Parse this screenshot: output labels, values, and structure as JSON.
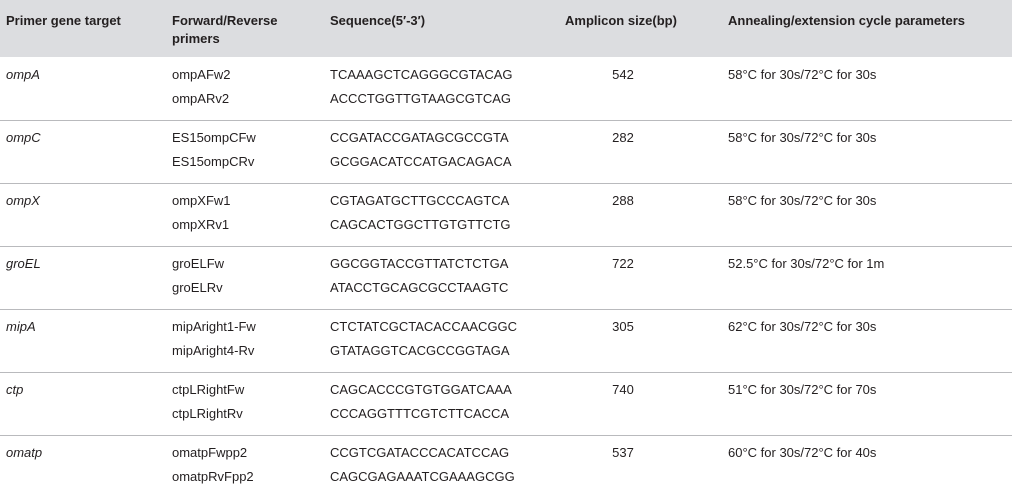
{
  "headers": {
    "target": "Primer gene target",
    "primers_line1": "Forward/Reverse",
    "primers_line2": "primers",
    "sequence": "Sequence(5′-3′)",
    "amplicon": "Amplicon size(bp)",
    "cycle": "Annealing/extension cycle parameters"
  },
  "rows": [
    {
      "target": "ompA",
      "fwd": "ompAFw2",
      "rev": "ompARv2",
      "fwd_seq": "TCAAAGCTCAGGGCGTACAG",
      "rev_seq": "ACCCTGGTTGTAAGCGTCAG",
      "size": "542",
      "cycle": "58°C for 30s/72°C for 30s"
    },
    {
      "target": "ompC",
      "fwd": "ES15ompCFw",
      "rev": "ES15ompCRv",
      "fwd_seq": "CCGATACCGATAGCGCCGTA",
      "rev_seq": "GCGGACATCCATGACAGACA",
      "size": "282",
      "cycle": "58°C for 30s/72°C for 30s"
    },
    {
      "target": "ompX",
      "fwd": "ompXFw1",
      "rev": "ompXRv1",
      "fwd_seq": "CGTAGATGCTTGCCCAGTCA",
      "rev_seq": "CAGCACTGGCTTGTGTTCTG",
      "size": "288",
      "cycle": "58°C for 30s/72°C for 30s"
    },
    {
      "target": "groEL",
      "fwd": "groELFw",
      "rev": "groELRv",
      "fwd_seq": "GGCGGTACCGTTATCTCTGA",
      "rev_seq": "ATACCTGCAGCGCCTAAGTC",
      "size": "722",
      "cycle": "52.5°C for 30s/72°C for 1m"
    },
    {
      "target": "mipA",
      "fwd": "mipAright1-Fw",
      "rev": "mipAright4-Rv",
      "fwd_seq": "CTCTATCGCTACACCAACGGC",
      "rev_seq": "GTATAGGTCACGCCGGTAGA",
      "size": "305",
      "cycle": "62°C for 30s/72°C for 30s"
    },
    {
      "target": "ctp",
      "fwd": "ctpLRightFw",
      "rev": "ctpLRightRv",
      "fwd_seq": "CAGCACCCGTGTGGATCAAA",
      "rev_seq": "CCCAGGTTTCGTCTTCACCA",
      "size": "740",
      "cycle": "51°C for 30s/72°C for 70s"
    },
    {
      "target": "omatp",
      "fwd": "omatpFwpp2",
      "rev": "omatpRvFpp2",
      "fwd_seq": "CCGTCGATACCCACATCCAG",
      "rev_seq": "CAGCGAGAAATCGAAAGCGG",
      "size": "537",
      "cycle": "60°C for 30s/72°C for 40s"
    }
  ]
}
